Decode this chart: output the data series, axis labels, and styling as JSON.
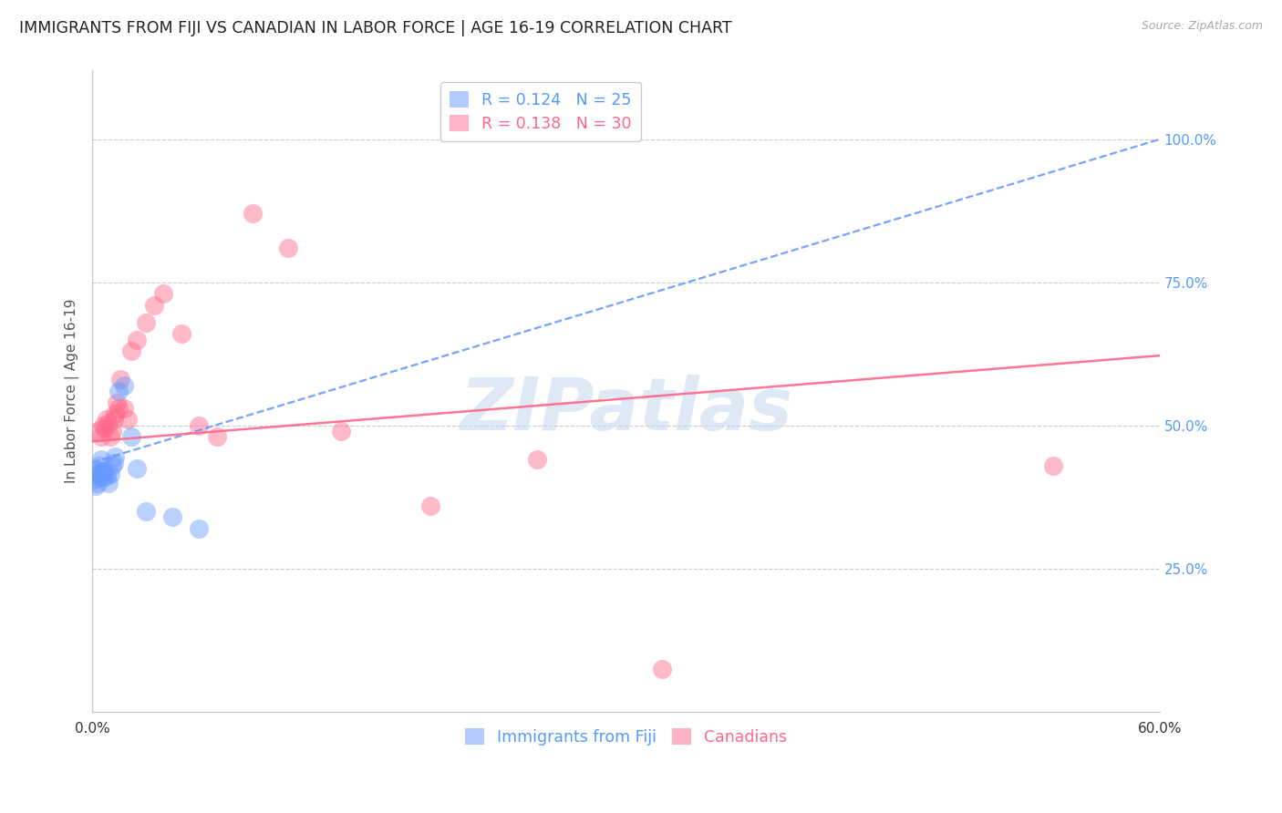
{
  "title": "IMMIGRANTS FROM FIJI VS CANADIAN IN LABOR FORCE | AGE 16-19 CORRELATION CHART",
  "source": "Source: ZipAtlas.com",
  "ylabel": "In Labor Force | Age 16-19",
  "xlim": [
    0.0,
    0.6
  ],
  "ylim": [
    0.0,
    1.12
  ],
  "xticks": [
    0.0,
    0.1,
    0.2,
    0.3,
    0.4,
    0.5,
    0.6
  ],
  "xticklabels": [
    "0.0%",
    "",
    "",
    "",
    "",
    "",
    "60.0%"
  ],
  "yticks_right": [
    0.25,
    0.5,
    0.75,
    1.0
  ],
  "yticklabels_right": [
    "25.0%",
    "50.0%",
    "75.0%",
    "100.0%"
  ],
  "grid_color": "#cccccc",
  "background_color": "#ffffff",
  "watermark": "ZIPatlas",
  "fiji_color": "#6699ff",
  "canadian_color": "#ff6688",
  "fiji_x": [
    0.001,
    0.002,
    0.002,
    0.003,
    0.003,
    0.004,
    0.004,
    0.005,
    0.005,
    0.006,
    0.006,
    0.007,
    0.008,
    0.009,
    0.01,
    0.011,
    0.012,
    0.013,
    0.015,
    0.018,
    0.022,
    0.025,
    0.03,
    0.045,
    0.06
  ],
  "fiji_y": [
    0.405,
    0.415,
    0.395,
    0.42,
    0.4,
    0.43,
    0.41,
    0.44,
    0.42,
    0.42,
    0.408,
    0.418,
    0.412,
    0.4,
    0.415,
    0.43,
    0.435,
    0.445,
    0.56,
    0.57,
    0.48,
    0.425,
    0.35,
    0.34,
    0.32
  ],
  "canadian_x": [
    0.003,
    0.005,
    0.006,
    0.007,
    0.008,
    0.009,
    0.01,
    0.011,
    0.012,
    0.013,
    0.014,
    0.015,
    0.016,
    0.018,
    0.02,
    0.022,
    0.025,
    0.03,
    0.035,
    0.04,
    0.05,
    0.06,
    0.07,
    0.09,
    0.11,
    0.14,
    0.19,
    0.25,
    0.32,
    0.54
  ],
  "canadian_y": [
    0.49,
    0.48,
    0.5,
    0.495,
    0.51,
    0.505,
    0.48,
    0.49,
    0.51,
    0.52,
    0.54,
    0.53,
    0.58,
    0.53,
    0.51,
    0.63,
    0.65,
    0.68,
    0.71,
    0.73,
    0.66,
    0.5,
    0.48,
    0.87,
    0.81,
    0.49,
    0.36,
    0.44,
    0.075,
    0.43
  ],
  "fiji_trend_x": [
    0.0,
    0.6
  ],
  "fiji_trend_y": [
    0.435,
    1.0
  ],
  "canadian_trend_x": [
    0.0,
    0.6
  ],
  "canadian_trend_y": [
    0.472,
    0.622
  ],
  "legend_fiji_label": "R = 0.124   N = 25",
  "legend_canadian_label": "R = 0.138   N = 30",
  "title_fontsize": 12.5,
  "axis_label_fontsize": 11,
  "tick_fontsize": 11,
  "legend_fontsize": 12.5
}
